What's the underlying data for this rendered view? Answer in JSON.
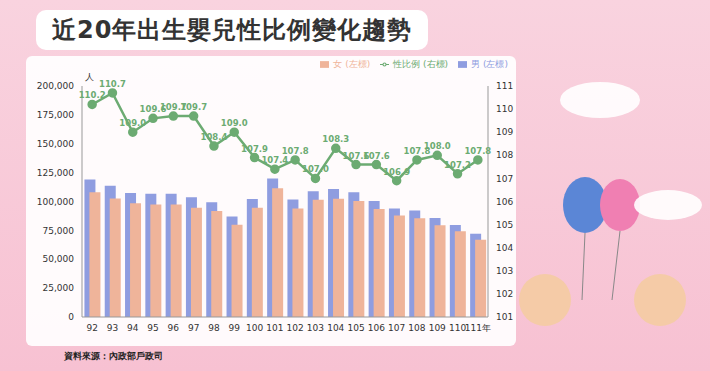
{
  "chart_data": {
    "type": "bar",
    "title": "近20年出生嬰兒性比例變化趨勢",
    "source": "資料來源：內政部戶政司",
    "y_label": "人",
    "categories": [
      "92",
      "93",
      "94",
      "95",
      "96",
      "97",
      "98",
      "99",
      "100",
      "101",
      "102",
      "103",
      "104",
      "105",
      "106",
      "107",
      "108",
      "109",
      "110",
      "111年"
    ],
    "series": [
      {
        "name": "男 (左標)",
        "type": "bar",
        "color": "#8f9de0",
        "values": [
          119000,
          113700,
          107400,
          106700,
          106700,
          103700,
          99400,
          87000,
          102100,
          120000,
          101800,
          108800,
          110900,
          108000,
          100500,
          93900,
          92300,
          85800,
          79600,
          72100
        ]
      },
      {
        "name": "女 (左標)",
        "type": "bar",
        "color": "#efb49a",
        "values": [
          108000,
          102700,
          98500,
          97400,
          97300,
          94500,
          91700,
          79800,
          94600,
          111500,
          94000,
          101600,
          102400,
          100400,
          93400,
          87800,
          85600,
          79400,
          74200,
          66900
        ]
      },
      {
        "name": "性比例 (右標)",
        "type": "line",
        "axis": "y2",
        "color": "#6cab72",
        "marker": "circle",
        "data_labels": true,
        "values": [
          110.2,
          110.7,
          109.0,
          109.6,
          109.7,
          109.7,
          108.4,
          109.0,
          107.9,
          107.4,
          107.8,
          107.0,
          108.3,
          107.6,
          107.6,
          106.9,
          107.8,
          108.0,
          107.2,
          107.8
        ],
        "value_labels": [
          "110.2",
          "110.7",
          "109.0",
          "109.6",
          "109.7",
          "109.7",
          "108.4",
          "109.0",
          "107.9",
          "107.4",
          "107.8",
          "107.0",
          "108.3",
          "107.6",
          "107.6",
          "106.9",
          "107.8",
          "108.0",
          "107.2",
          "107.8"
        ]
      }
    ],
    "ylim": [
      0,
      200000
    ],
    "yticks": [
      0,
      {
        "value": 25000,
        "label": "25,000"
      },
      {
        "value": 50000,
        "label": "50,000"
      },
      {
        "value": 75000,
        "label": "75,000"
      },
      {
        "value": 100000,
        "label": "100,000"
      },
      {
        "value": 125000,
        "label": "125,000"
      },
      {
        "value": 150000,
        "label": "150,000"
      },
      {
        "value": 175000,
        "label": "175,000"
      },
      {
        "value": 200000,
        "label": "200,000"
      }
    ],
    "y2lim": [
      101,
      111
    ],
    "y2ticks": [
      101,
      102,
      103,
      104,
      105,
      106,
      107,
      108,
      109,
      110,
      111
    ],
    "legend": "upper right",
    "grid": false
  }
}
